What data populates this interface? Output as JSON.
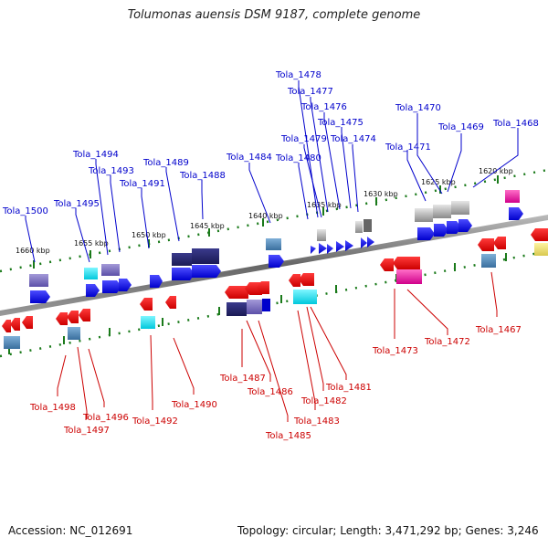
{
  "title": "Tolumonas auensis DSM 9187, complete genome",
  "footer": {
    "accession": "Accession: NC_012691",
    "topology": "Topology: circular; Length: 3,471,292 bp; Genes: 3,246"
  },
  "scale_labels": [
    "1620 kbp",
    "1625 kbp",
    "1630 kbp",
    "1635 kbp",
    "1640 kbp",
    "1645 kbp",
    "1650 kbp",
    "1655 kbp",
    "1660 kbp"
  ],
  "top_labels": [
    "Tola_1468",
    "Tola_1469",
    "Tola_1470",
    "Tola_1471",
    "Tola_1474",
    "Tola_1475",
    "Tola_1476",
    "Tola_1477",
    "Tola_1478",
    "Tola_1479",
    "Tola_1480",
    "Tola_1484",
    "Tola_1488",
    "Tola_1489",
    "Tola_1491",
    "Tola_1493",
    "Tola_1494",
    "Tola_1495",
    "Tola_1500"
  ],
  "bottom_labels": [
    "Tola_1467",
    "Tola_1472",
    "Tola_1473",
    "Tola_1481",
    "Tola_1482",
    "Tola_1483",
    "Tola_1485",
    "Tola_1486",
    "Tola_1487",
    "Tola_1490",
    "Tola_1492",
    "Tola_1496",
    "Tola_1497",
    "Tola_1498"
  ],
  "colors": {
    "forward_gene": "#0000ee",
    "reverse_gene": "#ee0000",
    "backbone": "#777777",
    "tick": "#1a7a1a",
    "label_forward": "#0000cc",
    "label_reverse": "#cc0000"
  }
}
